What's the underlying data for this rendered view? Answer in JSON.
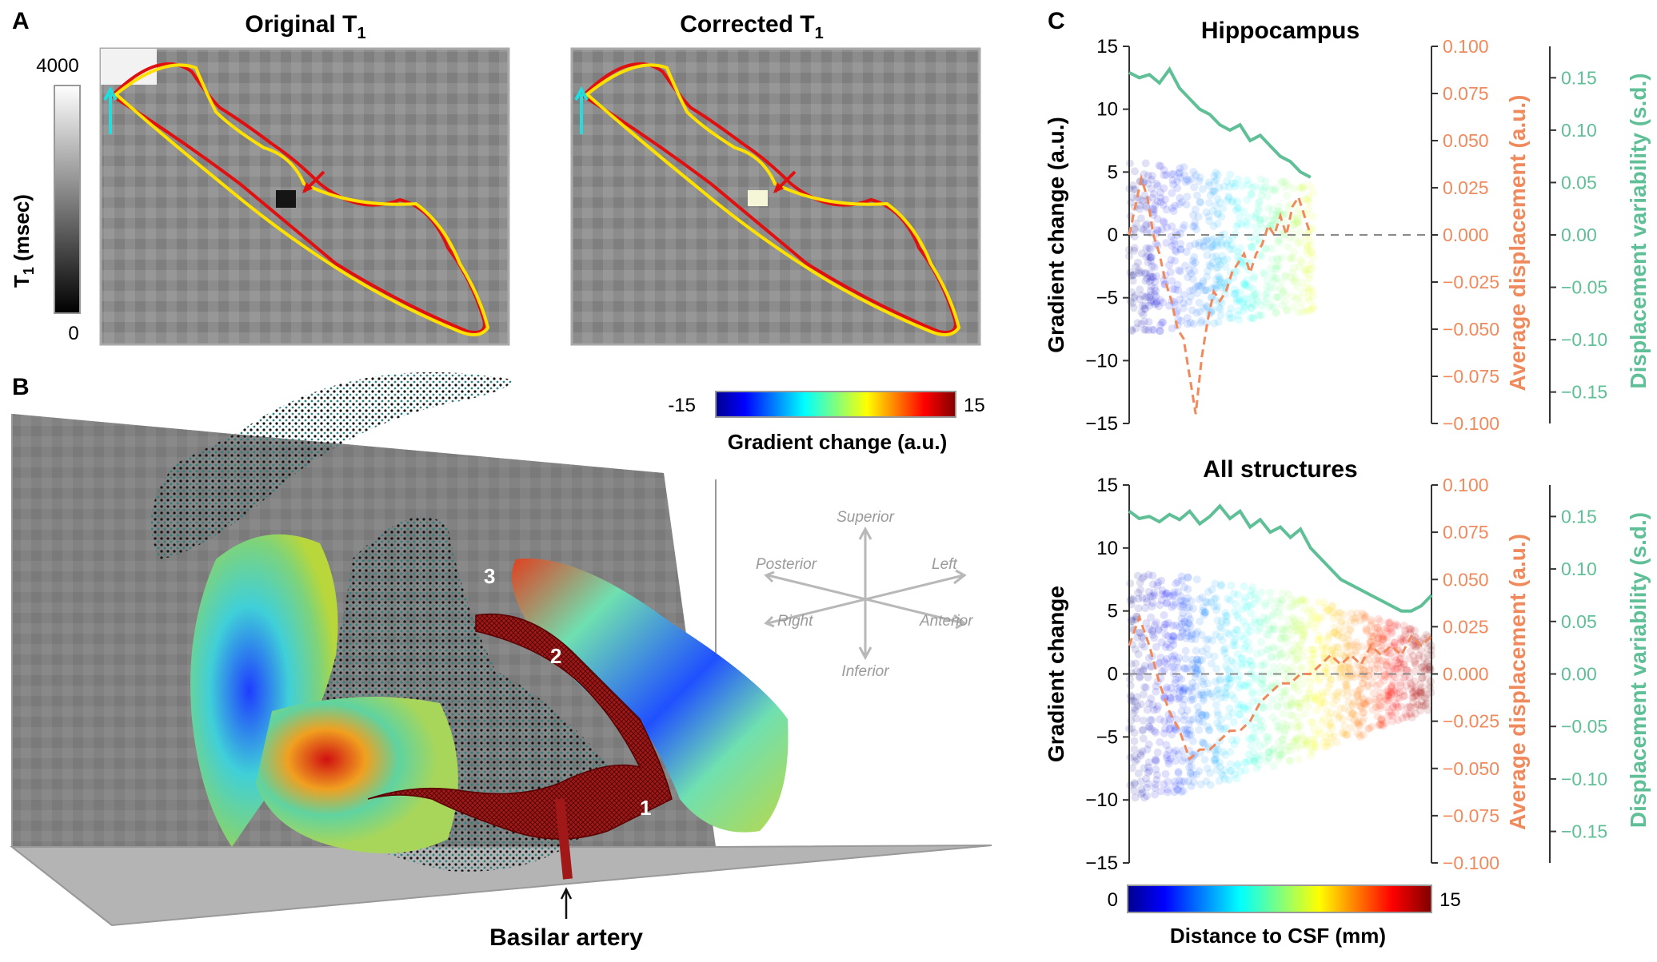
{
  "panel_a": {
    "label": "A",
    "title_original": "Original T",
    "title_corrected": "Corrected T",
    "subscript": "1",
    "colorbar": {
      "top": "4000",
      "bottom": "0",
      "label": "T",
      "sub": "1",
      "unit": " (msec)"
    }
  },
  "panel_b": {
    "label": "B",
    "colorbar": {
      "min": "-15",
      "max": "15",
      "label": "Gradient change (a.u.)"
    },
    "orientation": {
      "superior": "Superior",
      "inferior": "Inferior",
      "posterior": "Posterior",
      "left": "Left",
      "right": "Right",
      "anterior": "Anterior"
    },
    "numbers": [
      "1",
      "2",
      "3"
    ],
    "artery_label": "Basilar artery"
  },
  "panel_c": {
    "label": "C",
    "colorbar": {
      "min": "0",
      "max": "15",
      "label": "Distance to CSF (mm)"
    },
    "colors": {
      "orange": "#f08a5d",
      "green": "#5fbf96",
      "axis": "#333333"
    }
  },
  "chart_data": [
    {
      "type": "scatter",
      "title": "Hippocampus",
      "ylabel": "Gradient change (a.u.)",
      "ylim": [
        -15,
        15
      ],
      "yticks": [
        "15",
        "10",
        "5",
        "0",
        "−5",
        "−10",
        "−15"
      ],
      "right_axis_1": {
        "label": "Average displacement (a.u.)",
        "ylim": [
          -0.1,
          0.1
        ],
        "ticks": [
          "0.100",
          "0.075",
          "0.050",
          "0.025",
          "0.000",
          "−0.025",
          "−0.050",
          "−0.075",
          "−0.100"
        ]
      },
      "right_axis_2": {
        "label": "Displacement variability (s.d.)",
        "ylim": [
          -0.18,
          0.18
        ],
        "ticks": [
          "0.15",
          "0.10",
          "0.05",
          "0.00",
          "−0.05",
          "−0.10",
          "−0.15"
        ]
      },
      "x_range": [
        0,
        15
      ],
      "average_displacement": {
        "x": [
          0,
          0.3,
          0.6,
          0.9,
          1.2,
          1.5,
          1.8,
          2.1,
          2.4,
          2.7,
          3.0,
          3.3,
          3.6,
          3.9,
          4.2,
          4.5,
          4.8,
          5.1,
          5.4,
          5.7,
          6.0,
          6.3,
          6.6,
          6.9,
          7.2,
          7.5,
          7.8,
          8.1,
          8.4,
          8.7,
          9.0
        ],
        "y": [
          0.0,
          0.015,
          0.03,
          0.02,
          0.0,
          -0.01,
          -0.025,
          -0.035,
          -0.05,
          -0.055,
          -0.075,
          -0.095,
          -0.065,
          -0.045,
          -0.03,
          -0.035,
          -0.03,
          -0.02,
          -0.015,
          -0.01,
          -0.02,
          -0.01,
          -0.005,
          0.005,
          0.0,
          0.01,
          0.0,
          0.015,
          0.02,
          0.01,
          0.0
        ]
      },
      "displacement_variability": {
        "x": [
          0,
          0.5,
          1.0,
          1.5,
          2.0,
          2.5,
          3.0,
          3.5,
          4.0,
          4.5,
          5.0,
          5.5,
          6.0,
          6.5,
          7.0,
          7.5,
          8.0,
          8.5,
          9.0
        ],
        "y": [
          0.155,
          0.15,
          0.153,
          0.145,
          0.158,
          0.14,
          0.13,
          0.12,
          0.115,
          0.105,
          0.1,
          0.105,
          0.09,
          0.095,
          0.085,
          0.075,
          0.07,
          0.06,
          0.055
        ]
      }
    },
    {
      "type": "scatter",
      "title": "All structures",
      "ylabel": "Gradient change",
      "xlabel": "Distance to CSF (mm)",
      "ylim": [
        -15,
        15
      ],
      "yticks": [
        "15",
        "10",
        "5",
        "0",
        "−5",
        "−10",
        "−15"
      ],
      "right_axis_1": {
        "label": "Average displacement (a.u.)",
        "ylim": [
          -0.1,
          0.1
        ],
        "ticks": [
          "0.100",
          "0.075",
          "0.050",
          "0.025",
          "0.000",
          "−0.025",
          "−0.050",
          "−0.075",
          "−0.100"
        ]
      },
      "right_axis_2": {
        "label": "Displacement variability (s.d.)",
        "ylim": [
          -0.18,
          0.18
        ],
        "ticks": [
          "0.15",
          "0.10",
          "0.05",
          "0.00",
          "−0.05",
          "−0.10",
          "−0.15"
        ]
      },
      "x_range": [
        0,
        15
      ],
      "average_displacement": {
        "x": [
          0,
          0.5,
          1.0,
          1.5,
          2.0,
          2.5,
          3.0,
          3.5,
          4.0,
          4.5,
          5.0,
          5.5,
          6.0,
          6.5,
          7.0,
          7.5,
          8.0,
          8.5,
          9.0,
          9.5,
          10.0,
          10.5,
          11.0,
          11.5,
          12.0,
          12.5,
          13.0,
          13.5,
          14.0,
          14.5,
          15.0
        ],
        "y": [
          0.015,
          0.03,
          0.015,
          -0.005,
          -0.02,
          -0.03,
          -0.045,
          -0.04,
          -0.04,
          -0.035,
          -0.03,
          -0.03,
          -0.025,
          -0.015,
          -0.01,
          -0.005,
          -0.005,
          0.0,
          0.0,
          0.005,
          0.01,
          0.005,
          0.01,
          0.005,
          0.015,
          0.01,
          0.015,
          0.01,
          0.02,
          0.015,
          0.02
        ]
      },
      "displacement_variability": {
        "x": [
          0,
          0.5,
          1.0,
          1.5,
          2.0,
          2.5,
          3.0,
          3.5,
          4.0,
          4.5,
          5.0,
          5.5,
          6.0,
          6.5,
          7.0,
          7.5,
          8.0,
          8.5,
          9.0,
          9.5,
          10.0,
          10.5,
          11.0,
          11.5,
          12.0,
          12.5,
          13.0,
          13.5,
          14.0,
          14.5,
          15.0
        ],
        "y": [
          0.155,
          0.148,
          0.15,
          0.145,
          0.152,
          0.147,
          0.155,
          0.143,
          0.15,
          0.16,
          0.148,
          0.155,
          0.14,
          0.147,
          0.135,
          0.14,
          0.13,
          0.138,
          0.12,
          0.11,
          0.1,
          0.09,
          0.085,
          0.08,
          0.075,
          0.07,
          0.065,
          0.06,
          0.06,
          0.065,
          0.075
        ]
      }
    }
  ]
}
